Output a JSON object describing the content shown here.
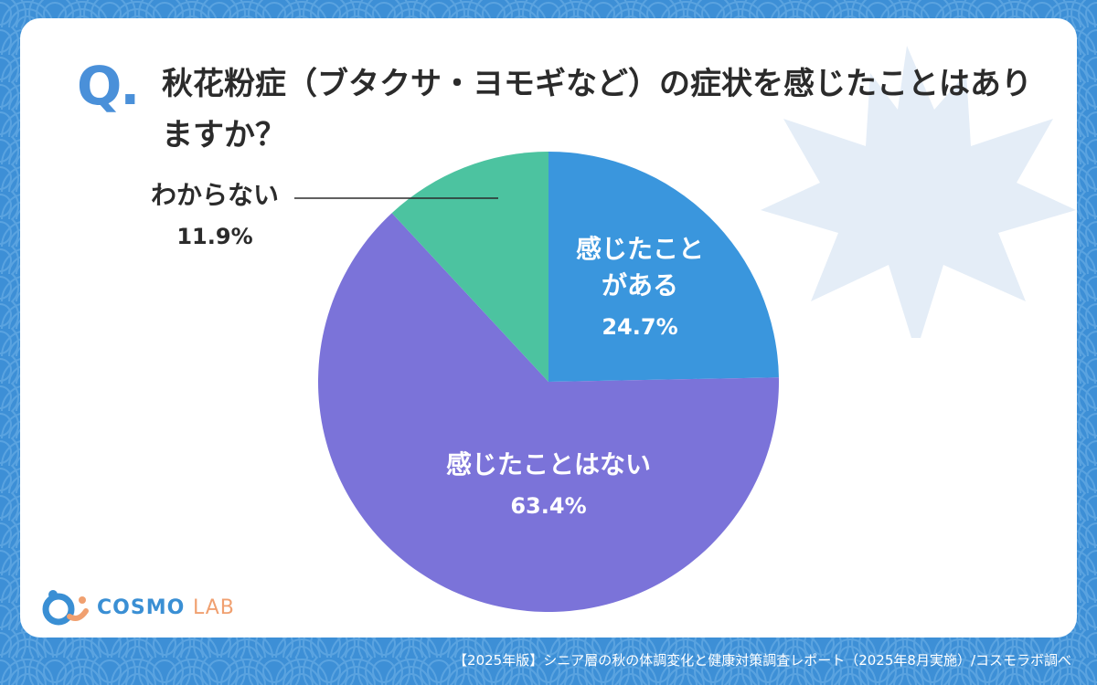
{
  "header": {
    "q_mark": "Q.",
    "question": "秋花粉症（ブタクサ・ヨモギなど）の症状を感じたことはありますか？"
  },
  "chart_data": {
    "type": "pie",
    "start": "12 o'clock",
    "direction": "clockwise",
    "slices": [
      {
        "label_lines": [
          "感じたこと",
          "がある"
        ],
        "value": 24.7,
        "value_label": "24.7%",
        "color": "#3a96dd"
      },
      {
        "label_lines": [
          "感じたことはない"
        ],
        "value": 63.4,
        "value_label": "63.4%",
        "color": "#7b73d9"
      },
      {
        "label_lines": [
          "わからない"
        ],
        "value": 11.9,
        "value_label": "11.9%",
        "color": "#4cc3a0"
      }
    ]
  },
  "logo": {
    "brand": "COSMO",
    "suffix": "LAB"
  },
  "footer": "【2025年版】シニア層の秋の体調変化と健康対策調査レポート（2025年8月実施）/コスモラボ調べ",
  "colors": {
    "background": "#3d8fd6",
    "card": "#ffffff",
    "accent": "#4a90d9"
  }
}
